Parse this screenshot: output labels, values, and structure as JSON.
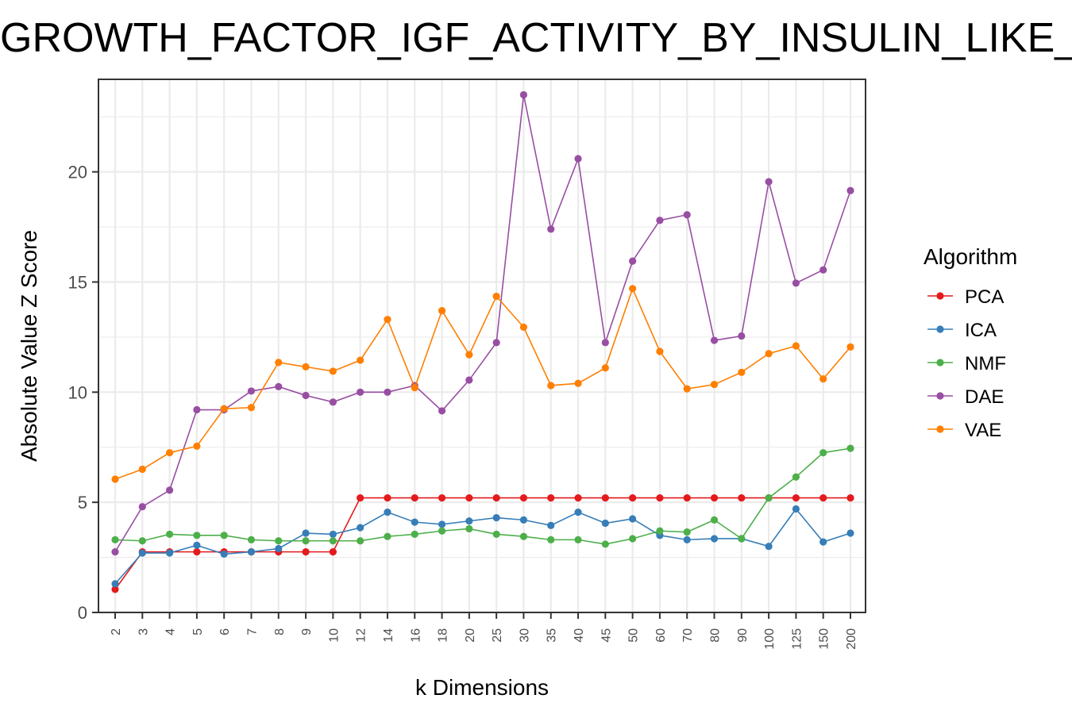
{
  "chart_data": {
    "type": "line",
    "title": "GROWTH_FACTOR_IGF_ACTIVITY_BY_INSULIN_LIKE_GROWTH_FACTOR_BINDING_PROTEINS",
    "xlabel": "k Dimensions",
    "ylabel": "Absolute Value Z Score",
    "categories": [
      "2",
      "3",
      "4",
      "5",
      "6",
      "7",
      "8",
      "9",
      "10",
      "12",
      "14",
      "16",
      "18",
      "20",
      "25",
      "30",
      "35",
      "40",
      "45",
      "50",
      "60",
      "70",
      "80",
      "90",
      "100",
      "125",
      "150",
      "200"
    ],
    "ylim": [
      0,
      24.2
    ],
    "yticks": [
      0,
      5,
      10,
      15,
      20
    ],
    "grid": true,
    "legend": {
      "title": "Algorithm",
      "position": "right"
    },
    "series": [
      {
        "name": "PCA",
        "color": "#e41a1c",
        "values": [
          1.05,
          2.75,
          2.75,
          2.75,
          2.75,
          2.75,
          2.75,
          2.75,
          2.75,
          5.2,
          5.2,
          5.2,
          5.2,
          5.2,
          5.2,
          5.2,
          5.2,
          5.2,
          5.2,
          5.2,
          5.2,
          5.2,
          5.2,
          5.2,
          5.2,
          5.2,
          5.2,
          5.2
        ]
      },
      {
        "name": "ICA",
        "color": "#377eb8",
        "values": [
          1.3,
          2.7,
          2.7,
          3.05,
          2.65,
          2.75,
          2.9,
          3.6,
          3.55,
          3.85,
          4.55,
          4.1,
          4.0,
          4.15,
          4.3,
          4.2,
          3.95,
          4.55,
          4.05,
          4.25,
          3.5,
          3.3,
          3.35,
          3.35,
          3.0,
          4.7,
          3.2,
          3.6
        ]
      },
      {
        "name": "NMF",
        "color": "#4daf4a",
        "values": [
          3.3,
          3.25,
          3.55,
          3.5,
          3.5,
          3.3,
          3.25,
          3.25,
          3.25,
          3.25,
          3.45,
          3.55,
          3.7,
          3.8,
          3.55,
          3.45,
          3.3,
          3.3,
          3.1,
          3.35,
          3.7,
          3.65,
          4.2,
          3.35,
          5.2,
          6.15,
          7.25,
          7.45
        ]
      },
      {
        "name": "DAE",
        "color": "#984ea3",
        "values": [
          2.75,
          4.8,
          5.55,
          9.2,
          9.2,
          10.05,
          10.25,
          9.85,
          9.55,
          10.0,
          10.0,
          10.3,
          9.15,
          10.55,
          12.25,
          23.5,
          17.4,
          20.6,
          12.25,
          15.95,
          17.8,
          18.05,
          12.35,
          12.55,
          19.55,
          14.95,
          15.55,
          19.15
        ]
      },
      {
        "name": "VAE",
        "color": "#ff7f00",
        "values": [
          6.05,
          6.5,
          7.25,
          7.55,
          9.25,
          9.3,
          11.35,
          11.15,
          10.95,
          11.45,
          13.3,
          10.2,
          13.7,
          11.7,
          14.35,
          12.95,
          10.3,
          10.4,
          11.1,
          14.7,
          11.85,
          10.15,
          10.35,
          10.9,
          11.75,
          12.1,
          10.6,
          12.05
        ]
      }
    ]
  }
}
